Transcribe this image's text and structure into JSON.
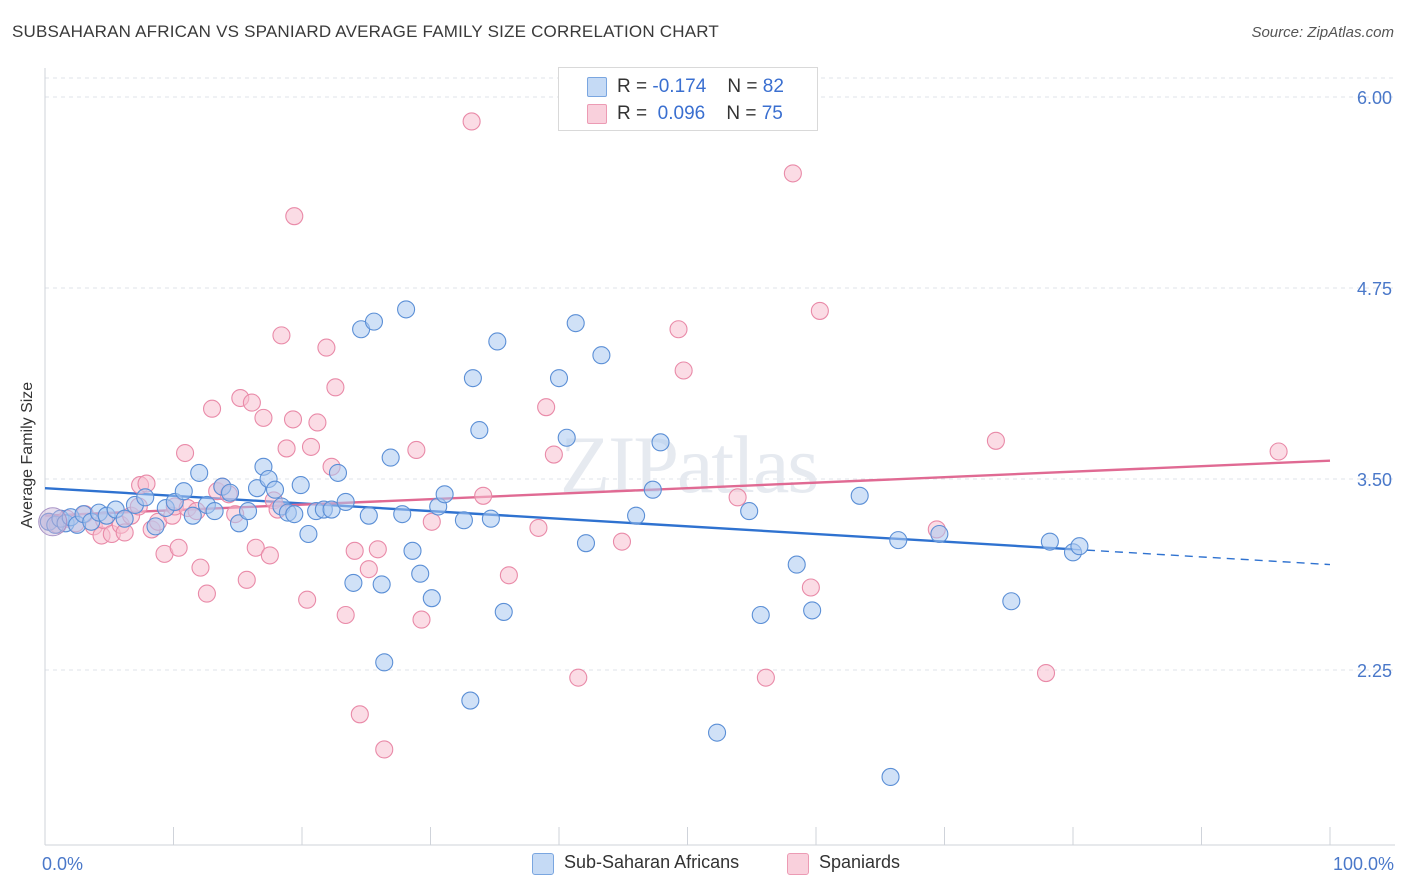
{
  "title": "SUBSAHARAN AFRICAN VS SPANIARD AVERAGE FAMILY SIZE CORRELATION CHART",
  "source": "Source: ZipAtlas.com",
  "watermark": "ZIPatlas",
  "legend_top": {
    "rows": [
      {
        "r_label": "R =",
        "r_value": "-0.174",
        "n_label": "N =",
        "n_value": "82"
      },
      {
        "r_label": "R =",
        "r_value": "0.096",
        "n_label": "N =",
        "n_value": "75"
      }
    ]
  },
  "legend_bottom": [
    "Sub-Saharan Africans",
    "Spaniards"
  ],
  "colors": {
    "blue_fill": "#aac8f0",
    "blue_stroke": "#5b8fd6",
    "blue_line": "#2f72d0",
    "pink_fill": "#f7bfd0",
    "pink_stroke": "#e98aa8",
    "pink_line": "#e06a93",
    "grid": "#dfe3ea",
    "tick_text": "#4a78c9"
  },
  "chart_data": {
    "type": "scatter",
    "title": "SUBSAHARAN AFRICAN VS SPANIARD AVERAGE FAMILY SIZE CORRELATION CHART",
    "xlabel": "",
    "ylabel": "Average Family Size",
    "xlim": [
      0,
      100
    ],
    "ylim": [
      1.25,
      6.1
    ],
    "x_tick_labels": [
      "0.0%",
      "100.0%"
    ],
    "y_ticks": [
      2.25,
      3.5,
      4.75,
      6.0
    ],
    "y_tick_labels": [
      "2.25",
      "3.50",
      "4.75",
      "6.00"
    ],
    "grid": true,
    "legend_position": "top-center",
    "series": [
      {
        "name": "Sub-Saharan Africans",
        "r": -0.174,
        "n": 82,
        "trend": {
          "x0": 0,
          "y0": 3.44,
          "x1": 80,
          "y1": 3.04,
          "dashed_to_x": 100,
          "dashed_to_y": 2.94
        },
        "points": [
          [
            0.3,
            3.22
          ],
          [
            0.8,
            3.2
          ],
          [
            1.2,
            3.24
          ],
          [
            1.6,
            3.21
          ],
          [
            2.0,
            3.25
          ],
          [
            2.5,
            3.2
          ],
          [
            3.0,
            3.27
          ],
          [
            3.6,
            3.22
          ],
          [
            4.2,
            3.28
          ],
          [
            4.8,
            3.26
          ],
          [
            5.5,
            3.3
          ],
          [
            6.2,
            3.24
          ],
          [
            7.0,
            3.33
          ],
          [
            7.8,
            3.38
          ],
          [
            8.6,
            3.19
          ],
          [
            9.4,
            3.31
          ],
          [
            10.1,
            3.35
          ],
          [
            10.8,
            3.42
          ],
          [
            11.5,
            3.26
          ],
          [
            12.0,
            3.54
          ],
          [
            12.6,
            3.33
          ],
          [
            13.2,
            3.29
          ],
          [
            13.8,
            3.45
          ],
          [
            14.4,
            3.41
          ],
          [
            15.1,
            3.21
          ],
          [
            15.8,
            3.29
          ],
          [
            16.5,
            3.44
          ],
          [
            17.0,
            3.58
          ],
          [
            17.4,
            3.5
          ],
          [
            17.9,
            3.43
          ],
          [
            18.4,
            3.32
          ],
          [
            18.9,
            3.28
          ],
          [
            19.4,
            3.27
          ],
          [
            19.9,
            3.46
          ],
          [
            20.5,
            3.14
          ],
          [
            21.1,
            3.29
          ],
          [
            21.7,
            3.3
          ],
          [
            22.3,
            3.3
          ],
          [
            22.8,
            3.54
          ],
          [
            23.4,
            3.35
          ],
          [
            24.0,
            2.82
          ],
          [
            24.6,
            4.48
          ],
          [
            25.2,
            3.26
          ],
          [
            25.6,
            4.53
          ],
          [
            26.2,
            2.81
          ],
          [
            26.4,
            2.3
          ],
          [
            26.9,
            3.64
          ],
          [
            27.8,
            3.27
          ],
          [
            28.1,
            4.61
          ],
          [
            28.6,
            3.03
          ],
          [
            29.2,
            2.88
          ],
          [
            30.1,
            2.72
          ],
          [
            30.6,
            3.32
          ],
          [
            31.1,
            3.4
          ],
          [
            32.6,
            3.23
          ],
          [
            33.1,
            2.05
          ],
          [
            33.3,
            4.16
          ],
          [
            33.8,
            3.82
          ],
          [
            34.7,
            3.24
          ],
          [
            35.2,
            4.4
          ],
          [
            35.7,
            2.63
          ],
          [
            40.0,
            4.16
          ],
          [
            40.6,
            3.77
          ],
          [
            41.3,
            4.52
          ],
          [
            42.1,
            3.08
          ],
          [
            43.3,
            4.31
          ],
          [
            46.0,
            3.26
          ],
          [
            47.3,
            3.43
          ],
          [
            47.9,
            3.74
          ],
          [
            52.3,
            1.84
          ],
          [
            54.8,
            3.29
          ],
          [
            55.7,
            2.61
          ],
          [
            58.5,
            2.94
          ],
          [
            59.7,
            2.64
          ],
          [
            63.4,
            3.39
          ],
          [
            65.8,
            1.55
          ],
          [
            66.4,
            3.1
          ],
          [
            69.6,
            3.14
          ],
          [
            75.2,
            2.7
          ],
          [
            78.2,
            3.09
          ],
          [
            80.0,
            3.02
          ],
          [
            80.5,
            3.06
          ]
        ]
      },
      {
        "name": "Spaniards",
        "r": 0.096,
        "n": 75,
        "trend": {
          "x0": 0,
          "y0": 3.26,
          "x1": 100,
          "y1": 3.62
        },
        "points": [
          [
            0.3,
            3.22
          ],
          [
            1.0,
            3.2
          ],
          [
            1.7,
            3.24
          ],
          [
            2.4,
            3.21
          ],
          [
            3.1,
            3.27
          ],
          [
            3.8,
            3.19
          ],
          [
            4.4,
            3.13
          ],
          [
            4.6,
            3.23
          ],
          [
            5.2,
            3.14
          ],
          [
            5.9,
            3.2
          ],
          [
            6.2,
            3.15
          ],
          [
            6.7,
            3.26
          ],
          [
            7.3,
            3.32
          ],
          [
            7.4,
            3.46
          ],
          [
            7.9,
            3.47
          ],
          [
            8.3,
            3.17
          ],
          [
            8.8,
            3.22
          ],
          [
            9.3,
            3.01
          ],
          [
            9.9,
            3.26
          ],
          [
            10.1,
            3.32
          ],
          [
            10.4,
            3.05
          ],
          [
            10.9,
            3.67
          ],
          [
            11.1,
            3.31
          ],
          [
            11.8,
            3.29
          ],
          [
            12.1,
            2.92
          ],
          [
            12.6,
            2.75
          ],
          [
            13.0,
            3.96
          ],
          [
            13.4,
            3.42
          ],
          [
            13.8,
            3.45
          ],
          [
            14.3,
            3.4
          ],
          [
            14.8,
            3.27
          ],
          [
            15.2,
            4.03
          ],
          [
            15.7,
            2.84
          ],
          [
            16.1,
            4.0
          ],
          [
            16.4,
            3.05
          ],
          [
            17.0,
            3.9
          ],
          [
            17.5,
            3.0
          ],
          [
            17.8,
            3.36
          ],
          [
            18.1,
            3.3
          ],
          [
            18.4,
            4.44
          ],
          [
            18.8,
            3.7
          ],
          [
            19.3,
            3.89
          ],
          [
            19.4,
            5.22
          ],
          [
            20.4,
            2.71
          ],
          [
            20.7,
            3.71
          ],
          [
            21.2,
            3.87
          ],
          [
            21.9,
            4.36
          ],
          [
            22.3,
            3.58
          ],
          [
            22.6,
            4.1
          ],
          [
            23.4,
            2.61
          ],
          [
            24.1,
            3.03
          ],
          [
            24.5,
            1.96
          ],
          [
            25.2,
            2.91
          ],
          [
            25.9,
            3.04
          ],
          [
            26.4,
            1.73
          ],
          [
            28.9,
            3.69
          ],
          [
            29.3,
            2.58
          ],
          [
            30.1,
            3.22
          ],
          [
            33.2,
            5.84
          ],
          [
            34.1,
            3.39
          ],
          [
            36.1,
            2.87
          ],
          [
            38.4,
            3.18
          ],
          [
            39.0,
            3.97
          ],
          [
            39.6,
            3.66
          ],
          [
            41.5,
            2.2
          ],
          [
            44.9,
            3.09
          ],
          [
            49.3,
            4.48
          ],
          [
            49.7,
            4.21
          ],
          [
            53.9,
            3.38
          ],
          [
            56.1,
            2.2
          ],
          [
            58.2,
            5.5
          ],
          [
            59.6,
            2.79
          ],
          [
            60.3,
            4.6
          ],
          [
            69.4,
            3.17
          ],
          [
            74.0,
            3.75
          ],
          [
            77.9,
            2.23
          ],
          [
            96.0,
            3.68
          ]
        ]
      }
    ]
  }
}
